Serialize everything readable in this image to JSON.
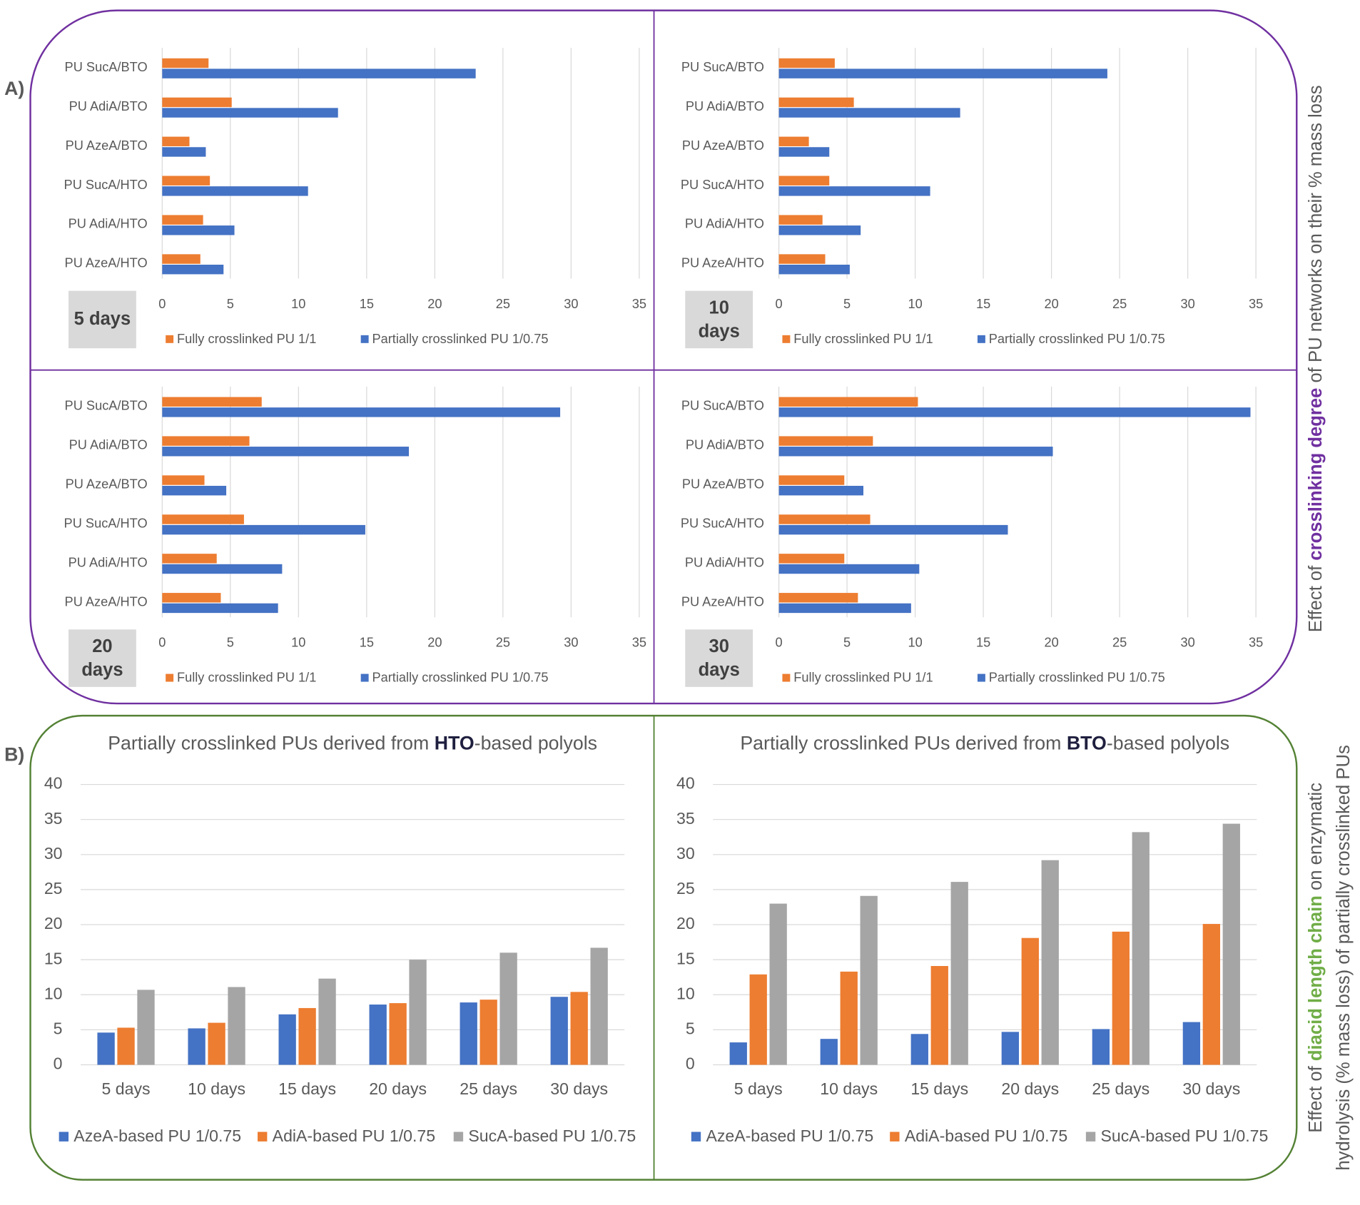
{
  "panel_labels": [
    "A)",
    "B)"
  ],
  "captions": [
    {
      "lines": [
        [
          "Effect of ",
          "crosslinking degree",
          " of PU networks on their % mass loss"
        ]
      ],
      "highlight": "#7030a0"
    },
    {
      "lines": [
        [
          "Effect of ",
          "diacid length chain",
          " on enzymatic"
        ],
        [
          "hydrolysis (% mass loss) of partially crosslinked PUs"
        ]
      ],
      "highlight": "#70ad47"
    }
  ],
  "chart_data": [
    {
      "type": "hbar",
      "title": "5 days",
      "categories": [
        "PU SucA/BTO",
        "PU AdiA/BTO",
        "PU AzeA/BTO",
        "PU SucA/HTO",
        "PU AdiA/HTO",
        "PU AzeA/HTO"
      ],
      "series": [
        {
          "name": "Fully crosslinked PU 1/1",
          "color": "#ed7d31",
          "values": [
            3.4,
            5.1,
            2.0,
            3.5,
            3.0,
            2.8
          ]
        },
        {
          "name": "Partially crosslinked PU 1/0.75",
          "color": "#4472c4",
          "values": [
            23.0,
            12.9,
            3.2,
            10.7,
            5.3,
            4.5
          ]
        }
      ],
      "xlim": [
        0,
        35
      ],
      "xticks": [
        0,
        5,
        10,
        15,
        20,
        25,
        30,
        35
      ],
      "grid": true
    },
    {
      "type": "hbar",
      "title": "10 days",
      "categories": [
        "PU SucA/BTO",
        "PU AdiA/BTO",
        "PU AzeA/BTO",
        "PU SucA/HTO",
        "PU AdiA/HTO",
        "PU AzeA/HTO"
      ],
      "series": [
        {
          "name": "Fully crosslinked PU 1/1",
          "color": "#ed7d31",
          "values": [
            4.1,
            5.5,
            2.2,
            3.7,
            3.2,
            3.4
          ]
        },
        {
          "name": "Partially crosslinked PU 1/0.75",
          "color": "#4472c4",
          "values": [
            24.1,
            13.3,
            3.7,
            11.1,
            6.0,
            5.2
          ]
        }
      ],
      "xlim": [
        0,
        35
      ],
      "xticks": [
        0,
        5,
        10,
        15,
        20,
        25,
        30,
        35
      ],
      "grid": true
    },
    {
      "type": "hbar",
      "title": "20 days",
      "categories": [
        "PU SucA/BTO",
        "PU AdiA/BTO",
        "PU AzeA/BTO",
        "PU SucA/HTO",
        "PU AdiA/HTO",
        "PU AzeA/HTO"
      ],
      "series": [
        {
          "name": "Fully crosslinked PU 1/1",
          "color": "#ed7d31",
          "values": [
            7.3,
            6.4,
            3.1,
            6.0,
            4.0,
            4.3
          ]
        },
        {
          "name": "Partially crosslinked PU 1/0.75",
          "color": "#4472c4",
          "values": [
            29.2,
            18.1,
            4.7,
            14.9,
            8.8,
            8.5
          ]
        }
      ],
      "xlim": [
        0,
        35
      ],
      "xticks": [
        0,
        5,
        10,
        15,
        20,
        25,
        30,
        35
      ],
      "grid": true
    },
    {
      "type": "hbar",
      "title": "30 days",
      "categories": [
        "PU SucA/BTO",
        "PU AdiA/BTO",
        "PU AzeA/BTO",
        "PU SucA/HTO",
        "PU AdiA/HTO",
        "PU AzeA/HTO"
      ],
      "series": [
        {
          "name": "Fully crosslinked PU 1/1",
          "color": "#ed7d31",
          "values": [
            10.2,
            6.9,
            4.8,
            6.7,
            4.8,
            5.8
          ]
        },
        {
          "name": "Partially crosslinked PU 1/0.75",
          "color": "#4472c4",
          "values": [
            34.6,
            20.1,
            6.2,
            16.8,
            10.3,
            9.7
          ]
        }
      ],
      "xlim": [
        0,
        35
      ],
      "xticks": [
        0,
        5,
        10,
        15,
        20,
        25,
        30,
        35
      ],
      "grid": true
    },
    {
      "type": "bar",
      "title": [
        "Partially crosslinked PUs derived from ",
        "HTO",
        "-based polyols"
      ],
      "categories": [
        "5 days",
        "10 days",
        "15 days",
        "20 days",
        "25 days",
        "30 days"
      ],
      "series": [
        {
          "name": "AzeA-based PU 1/0.75",
          "color": "#4472c4",
          "values": [
            4.6,
            5.2,
            7.2,
            8.6,
            8.9,
            9.7
          ]
        },
        {
          "name": "AdiA-based PU 1/0.75",
          "color": "#ed7d31",
          "values": [
            5.3,
            6.0,
            8.1,
            8.8,
            9.3,
            10.4
          ]
        },
        {
          "name": "SucA-based PU 1/0.75",
          "color": "#a5a5a5",
          "values": [
            10.7,
            11.1,
            12.3,
            15.0,
            16.0,
            16.7
          ]
        }
      ],
      "ylim": [
        0,
        40
      ],
      "yticks": [
        0,
        5,
        10,
        15,
        20,
        25,
        30,
        35,
        40
      ],
      "grid": true
    },
    {
      "type": "bar",
      "title": [
        "Partially crosslinked PUs derived from ",
        "BTO",
        "-based polyols"
      ],
      "categories": [
        "5 days",
        "10 days",
        "15 days",
        "20 days",
        "25 days",
        "30 days"
      ],
      "series": [
        {
          "name": "AzeA-based PU 1/0.75",
          "color": "#4472c4",
          "values": [
            3.2,
            3.7,
            4.4,
            4.7,
            5.1,
            6.1
          ]
        },
        {
          "name": "AdiA-based PU 1/0.75",
          "color": "#ed7d31",
          "values": [
            12.9,
            13.3,
            14.1,
            18.1,
            19.0,
            20.1
          ]
        },
        {
          "name": "SucA-based PU 1/0.75",
          "color": "#a5a5a5",
          "values": [
            23.0,
            24.1,
            26.1,
            29.2,
            33.2,
            34.4
          ]
        }
      ],
      "ylim": [
        0,
        40
      ],
      "yticks": [
        0,
        5,
        10,
        15,
        20,
        25,
        30,
        35,
        40
      ],
      "grid": true
    }
  ]
}
